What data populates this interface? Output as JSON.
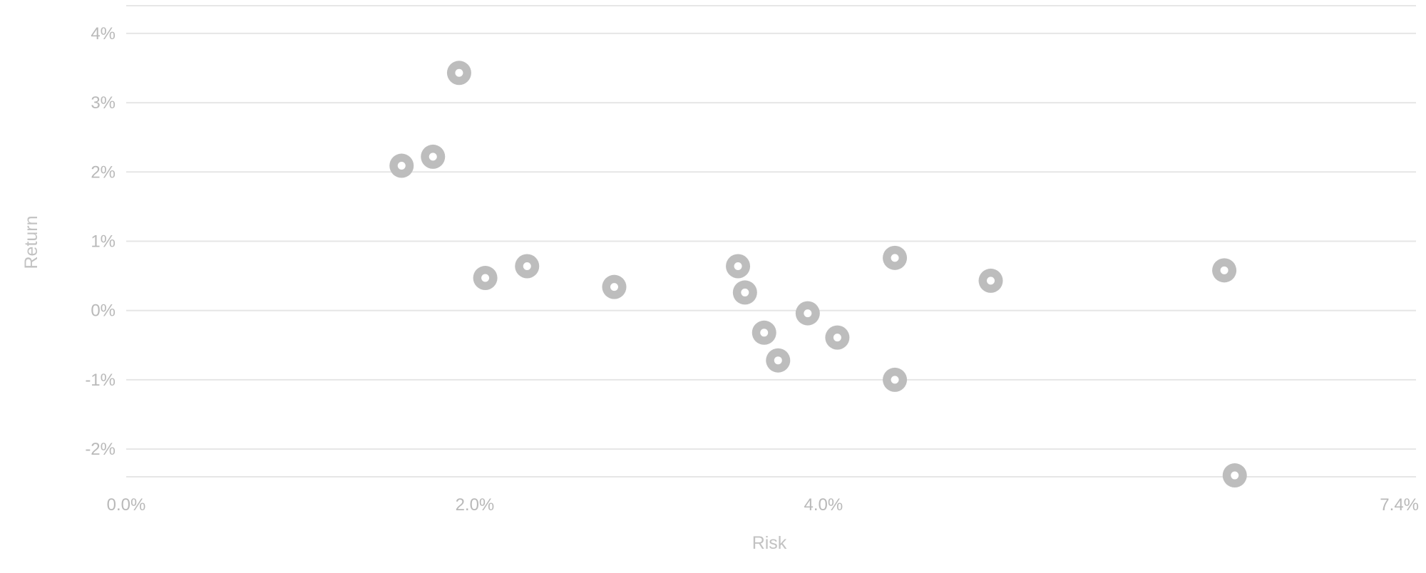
{
  "chart_data": {
    "type": "scatter",
    "title": "",
    "xlabel": "Risk",
    "ylabel": "Return",
    "xlim": [
      0,
      7.4
    ],
    "ylim": [
      -2.4,
      4.4
    ],
    "x_ticks": [
      0,
      2,
      4,
      7.4
    ],
    "x_tick_labels": [
      "0.0%",
      "2.0%",
      "4.0%",
      "7.4%"
    ],
    "y_ticks": [
      4,
      3,
      2,
      1,
      0,
      -1,
      -2
    ],
    "y_tick_labels": [
      "4%",
      "3%",
      "2%",
      "1%",
      "0%",
      "-1%",
      "-2%"
    ],
    "grid": true,
    "marker_color": "#bdbdbd",
    "grid_color": "#e6e6e6",
    "points": [
      {
        "x": 1.58,
        "y": 2.09
      },
      {
        "x": 1.76,
        "y": 2.22
      },
      {
        "x": 1.91,
        "y": 3.43
      },
      {
        "x": 2.06,
        "y": 0.47
      },
      {
        "x": 2.3,
        "y": 0.64
      },
      {
        "x": 2.8,
        "y": 0.34
      },
      {
        "x": 3.51,
        "y": 0.64
      },
      {
        "x": 3.55,
        "y": 0.26
      },
      {
        "x": 3.66,
        "y": -0.32
      },
      {
        "x": 3.74,
        "y": -0.72
      },
      {
        "x": 3.91,
        "y": -0.04
      },
      {
        "x": 4.08,
        "y": -0.39
      },
      {
        "x": 4.41,
        "y": 0.76
      },
      {
        "x": 4.41,
        "y": -1.0
      },
      {
        "x": 4.96,
        "y": 0.43
      },
      {
        "x": 6.3,
        "y": 0.58
      },
      {
        "x": 6.36,
        "y": -2.38
      }
    ]
  }
}
